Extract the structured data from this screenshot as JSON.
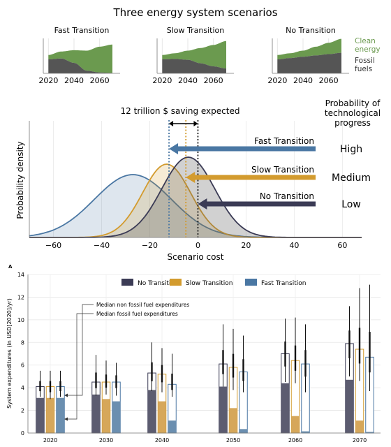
{
  "figure_title": "Three energy system scenarios",
  "colors": {
    "fossil": "#555555",
    "clean": "#6b9a4f",
    "no_transition": "#3b3b55",
    "slow_transition": "#d39b2e",
    "fast_transition": "#4a77a3"
  },
  "chart_data": [
    {
      "type": "area",
      "title": "Fast Transition",
      "x": [
        2020,
        2030,
        2040,
        2050,
        2060,
        2070
      ],
      "series": [
        {
          "name": "Fossil fuels",
          "values": [
            3.2,
            3.4,
            2.4,
            0.6,
            0.2,
            0.1
          ]
        },
        {
          "name": "Clean energy",
          "values": [
            1.0,
            1.6,
            2.9,
            4.6,
            5.9,
            6.5
          ]
        }
      ],
      "xticks": [
        "2020",
        "2040",
        "2060"
      ]
    },
    {
      "type": "area",
      "title": "Slow Transition",
      "x": [
        2020,
        2030,
        2040,
        2050,
        2060,
        2070
      ],
      "series": [
        {
          "name": "Fossil fuels",
          "values": [
            3.2,
            3.3,
            3.1,
            2.3,
            1.6,
            1.1
          ]
        },
        {
          "name": "Clean energy",
          "values": [
            1.0,
            1.3,
            2.1,
            3.5,
            4.9,
            6.3
          ]
        }
      ],
      "xticks": [
        "2020",
        "2040",
        "2060"
      ]
    },
    {
      "type": "area",
      "title": "No Transition",
      "x": [
        2020,
        2030,
        2040,
        2050,
        2060,
        2070
      ],
      "series": [
        {
          "name": "Fossil fuels",
          "values": [
            3.2,
            3.5,
            3.8,
            4.1,
            4.4,
            4.7
          ]
        },
        {
          "name": "Clean energy",
          "values": [
            1.0,
            1.1,
            1.4,
            2.0,
            2.6,
            3.2
          ]
        }
      ],
      "xticks": [
        "2020",
        "2040",
        "2060"
      ],
      "legend": [
        "Clean energy",
        "Fossil fuels"
      ]
    },
    {
      "type": "area",
      "title": "",
      "xlabel": "Scenario cost",
      "ylabel": "Probability density",
      "xlim": [
        -70,
        68
      ],
      "xticks": [
        -60,
        -40,
        -20,
        0,
        20,
        40,
        60
      ],
      "series": [
        {
          "name": "Fast Transition",
          "mean": -27,
          "sd": 16
        },
        {
          "name": "Slow Transition",
          "mean": -13,
          "sd": 10
        },
        {
          "name": "No Transition",
          "mean": -4,
          "sd": 11
        }
      ],
      "annotations": {
        "saving": "12 trillion $ saving expected",
        "probability_header": "Probability of technological progress",
        "levels": [
          "High",
          "Medium",
          "Low"
        ],
        "arrow_labels": [
          "Fast Transition",
          "Slow Transition",
          "No Transition"
        ],
        "vlines": [
          -12,
          -5,
          0
        ]
      }
    },
    {
      "type": "bar",
      "panel_label": "A",
      "ylabel": "System expenditures (in USD[2020]/yr)",
      "ylim": [
        0,
        14
      ],
      "yticks": [
        0,
        2,
        4,
        6,
        8,
        10,
        12,
        14
      ],
      "categories": [
        "2020",
        "2030",
        "2040",
        "2050",
        "2060",
        "2070"
      ],
      "legend": [
        "No Transition",
        "Slow Transition",
        "Fast Transition"
      ],
      "annotations": [
        "Median non fossil fuel expenditures",
        "Median fossil fuel expenditures"
      ],
      "series": [
        {
          "name": "No Transition",
          "total": [
            4.1,
            4.5,
            5.3,
            6.1,
            7.0,
            7.9
          ],
          "fossil": [
            3.1,
            3.4,
            3.8,
            4.1,
            4.4,
            4.7
          ],
          "err_low": [
            3.2,
            3.3,
            3.7,
            4.1,
            4.5,
            5.0
          ],
          "err_high": [
            5.5,
            6.9,
            8.0,
            9.6,
            10.1,
            11.2
          ]
        },
        {
          "name": "Slow Transition",
          "total": [
            4.1,
            4.5,
            5.2,
            5.8,
            6.4,
            7.4
          ],
          "fossil": [
            3.1,
            3.0,
            2.8,
            2.2,
            1.5,
            1.1
          ],
          "err_low": [
            3.0,
            3.4,
            3.6,
            3.8,
            4.4,
            4.6
          ],
          "err_high": [
            5.5,
            6.4,
            7.5,
            9.2,
            10.2,
            12.8
          ]
        },
        {
          "name": "Fast Transition",
          "total": [
            4.1,
            4.5,
            4.3,
            5.4,
            6.1,
            6.7
          ],
          "fossil": [
            3.1,
            2.8,
            1.1,
            0.35,
            0.15,
            0.1
          ],
          "err_low": [
            3.2,
            3.3,
            3.2,
            3.6,
            3.6,
            3.7
          ],
          "err_high": [
            5.5,
            6.2,
            7.0,
            8.6,
            9.6,
            13.1
          ]
        }
      ]
    }
  ]
}
